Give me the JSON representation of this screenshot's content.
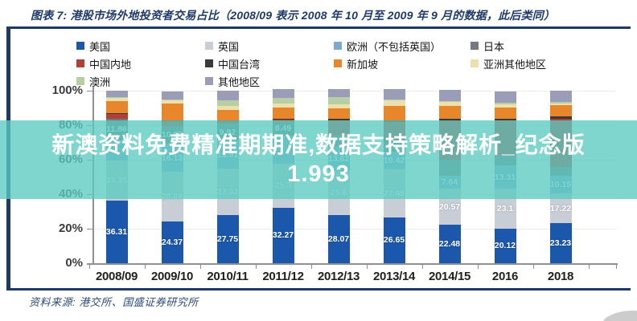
{
  "header": {
    "title": "图表 7: 港股市场外地投资者交易占比（2008/09 表示 2008 年 10 月至 2009 年 9 月的数据，此后类同）"
  },
  "source": "资料来源: 港交所、国盛证券研究所",
  "watermark": {
    "line1": "新澳资料免费精准期期准,数据支持策略解析_纪念版",
    "line2": "1.993",
    "band_color": "#5bcac1",
    "text_color": "#ffffff"
  },
  "axis": {
    "y_tick_labels": [
      "100%",
      "80%",
      "60%",
      "40%",
      "20%",
      "0%"
    ]
  },
  "chart_data": {
    "type": "bar",
    "stacked": true,
    "title": "港股市场外地投资者交易占比",
    "xlabel": "",
    "ylabel": "",
    "ylim": [
      0,
      100
    ],
    "grid": true,
    "legend_position": "top",
    "categories": [
      "2008/09",
      "2009/10",
      "2010/11",
      "2011/12",
      "2012/13",
      "2013/14",
      "2014/15",
      "2016",
      "2018"
    ],
    "series": [
      {
        "name": "美国",
        "color": "#1b57ab",
        "values": [
          36.31,
          24.37,
          27.75,
          32.27,
          28.07,
          26.65,
          22.48,
          20.12,
          23.23
        ],
        "labels": [
          "36.31",
          "24.37",
          "27.75",
          "32.27",
          "28.07",
          "26.65",
          "22.48",
          "20.12",
          "23.23"
        ]
      },
      {
        "name": "英国",
        "color": "#c9cdd6",
        "values": [
          23.35,
          28.68,
          27.32,
          25.3,
          25.6,
          27.68,
          20.57,
          23.1,
          17.22
        ],
        "labels": [
          "23.35",
          "28.68",
          "27.32",
          "25.3",
          "25.6",
          "27.68",
          "20.57",
          "23.1",
          "17.22"
        ]
      },
      {
        "name": "欧洲（不包括英国）",
        "color": "#7fa8d0",
        "values": [
          12.0,
          16.13,
          15.91,
          16.3,
          13.62,
          10.42,
          7.64,
          13.31,
          10.15
        ],
        "labels": [
          null,
          "16.13",
          "15.91",
          null,
          "13.62",
          "10.42",
          "7.64",
          "13.31",
          "10.15"
        ]
      },
      {
        "name": "日本",
        "color": "#75797f",
        "values": [
          11.86,
          10.55,
          9.92,
          8.49,
          6.5,
          5.5,
          9.3,
          6.0,
          5.0
        ],
        "labels": [
          "11.86",
          "10.55",
          "9.92",
          "8.49",
          null,
          null,
          null,
          null,
          null
        ]
      },
      {
        "name": "中国内地",
        "color": "#b04038",
        "values": [
          3.2,
          2.8,
          1.9,
          1.4,
          9.0,
          11.5,
          22.5,
          20.5,
          28.3
        ],
        "labels": [
          null,
          null,
          null,
          null,
          null,
          null,
          null,
          null,
          null
        ]
      },
      {
        "name": "中国台湾",
        "color": "#3a3a3a",
        "values": [
          0.3,
          0.2,
          0.2,
          0.2,
          0.8,
          1.1,
          1.2,
          0.9,
          1.1
        ],
        "labels": [
          null,
          null,
          null,
          null,
          null,
          null,
          null,
          null,
          null
        ]
      },
      {
        "name": "新加坡",
        "color": "#e8862c",
        "values": [
          7.0,
          9.8,
          6.0,
          6.5,
          6.0,
          8.4,
          7.4,
          6.5,
          6.5
        ],
        "labels": [
          null,
          null,
          null,
          null,
          null,
          null,
          null,
          null,
          null
        ]
      },
      {
        "name": "亚洲其他地区",
        "color": "#ece0ad",
        "values": [
          1.9,
          1.9,
          2.3,
          1.9,
          2.3,
          3.3,
          2.8,
          1.8,
          1.3
        ],
        "labels": [
          null,
          null,
          null,
          null,
          null,
          null,
          null,
          null,
          null
        ]
      },
      {
        "name": "澳洲",
        "color": "#b7cfa4",
        "values": [
          0.3,
          0.3,
          3.3,
          3.7,
          4.2,
          0.4,
          0.3,
          1.0,
          0.6
        ],
        "labels": [
          null,
          null,
          null,
          null,
          null,
          null,
          null,
          null,
          null
        ]
      },
      {
        "name": "其他地区",
        "color": "#9a9cb8",
        "values": [
          3.7,
          5.0,
          5.5,
          4.7,
          4.7,
          6.0,
          6.5,
          6.5,
          6.5
        ],
        "labels": [
          null,
          null,
          null,
          null,
          null,
          null,
          null,
          null,
          null
        ]
      }
    ]
  }
}
